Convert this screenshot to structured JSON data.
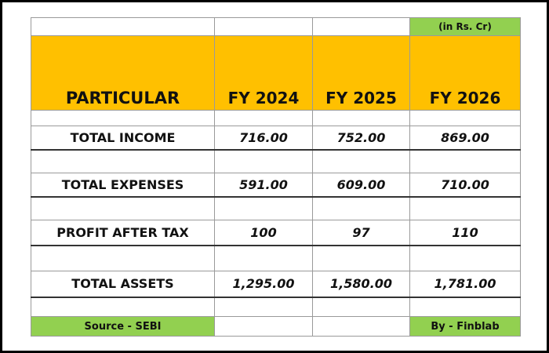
{
  "note": "(in Rs. Cr)",
  "header": [
    "PARTICULAR",
    "FY 2024",
    "FY 2025",
    "FY 2026"
  ],
  "rows": [
    [
      "TOTAL INCOME",
      "716.00",
      "752.00",
      "869.00"
    ],
    [
      "TOTAL EXPENSES",
      "591.00",
      "609.00",
      "710.00"
    ],
    [
      "PROFIT AFTER TAX",
      "100",
      "97",
      "110"
    ],
    [
      "TOTAL ASSETS",
      "1,295.00",
      "1,580.00",
      "1,781.00"
    ]
  ],
  "footer": {
    "source": "Source - SEBI",
    "credit": "By - Finblab"
  }
}
